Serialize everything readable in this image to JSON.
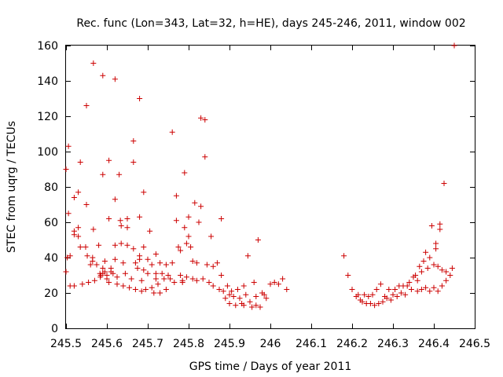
{
  "chart_data": {
    "type": "scatter",
    "title": "Rec. func (Lon=343, Lat=32, h=HE), days 245-246, 2011, window 002",
    "xlabel": "GPS time / Days of year 2011",
    "ylabel": "STEC from uqrg / TECUs",
    "xlim": [
      245.5,
      246.5
    ],
    "ylim": [
      0,
      160
    ],
    "x_ticks": [
      245.5,
      245.6,
      245.7,
      245.8,
      245.9,
      246.0,
      246.1,
      246.2,
      246.3,
      246.4,
      246.5
    ],
    "x_tick_labels": [
      "245.5",
      "245.6",
      "245.7",
      "245.8",
      "245.9",
      "246",
      "246.1",
      "246.2",
      "246.3",
      "246.4",
      "246.5"
    ],
    "y_ticks": [
      0,
      20,
      40,
      60,
      80,
      100,
      120,
      140,
      160
    ],
    "y_tick_labels": [
      "0",
      "20",
      "40",
      "60",
      "80",
      "100",
      "120",
      "140",
      "160"
    ],
    "marker": "+",
    "color": "#cc0000",
    "grid": false,
    "series": [
      {
        "name": "STEC",
        "points": [
          [
            245.5,
            90
          ],
          [
            245.5,
            32
          ],
          [
            245.503,
            40
          ],
          [
            245.506,
            103
          ],
          [
            245.506,
            65
          ],
          [
            245.51,
            41
          ],
          [
            245.51,
            24
          ],
          [
            245.52,
            74
          ],
          [
            245.52,
            55
          ],
          [
            245.52,
            53
          ],
          [
            245.52,
            24
          ],
          [
            245.53,
            77
          ],
          [
            245.535,
            94
          ],
          [
            245.53,
            57
          ],
          [
            245.53,
            52
          ],
          [
            245.535,
            46
          ],
          [
            245.54,
            25
          ],
          [
            245.548,
            46
          ],
          [
            245.55,
            126
          ],
          [
            245.55,
            70
          ],
          [
            245.552,
            41
          ],
          [
            245.555,
            26
          ],
          [
            245.567,
            150
          ],
          [
            245.567,
            56
          ],
          [
            245.565,
            40
          ],
          [
            245.565,
            38
          ],
          [
            245.56,
            36
          ],
          [
            245.57,
            27
          ],
          [
            245.575,
            36
          ],
          [
            245.58,
            47
          ],
          [
            245.583,
            31
          ],
          [
            245.584,
            29
          ],
          [
            245.585,
            30
          ],
          [
            245.59,
            143
          ],
          [
            245.59,
            87
          ],
          [
            245.595,
            38
          ],
          [
            245.59,
            34
          ],
          [
            245.59,
            31
          ],
          [
            245.595,
            32
          ],
          [
            245.6,
            30
          ],
          [
            245.6,
            28
          ],
          [
            245.605,
            95
          ],
          [
            245.605,
            62
          ],
          [
            245.605,
            26
          ],
          [
            245.61,
            34
          ],
          [
            245.61,
            32
          ],
          [
            245.615,
            31
          ],
          [
            245.62,
            141
          ],
          [
            245.62,
            73
          ],
          [
            245.62,
            47
          ],
          [
            245.62,
            39
          ],
          [
            245.625,
            29
          ],
          [
            245.625,
            25
          ],
          [
            245.63,
            87
          ],
          [
            245.633,
            61
          ],
          [
            245.635,
            58
          ],
          [
            245.635,
            48
          ],
          [
            245.64,
            37
          ],
          [
            245.64,
            24
          ],
          [
            245.645,
            31
          ],
          [
            245.65,
            62
          ],
          [
            245.65,
            57
          ],
          [
            245.65,
            47
          ],
          [
            245.655,
            23
          ],
          [
            245.66,
            28
          ],
          [
            245.665,
            106
          ],
          [
            245.665,
            94
          ],
          [
            245.665,
            45
          ],
          [
            245.67,
            37
          ],
          [
            245.67,
            22
          ],
          [
            245.675,
            34
          ],
          [
            245.68,
            130
          ],
          [
            245.68,
            63
          ],
          [
            245.68,
            41
          ],
          [
            245.68,
            39
          ],
          [
            245.685,
            27
          ],
          [
            245.685,
            21
          ],
          [
            245.69,
            77
          ],
          [
            245.69,
            46
          ],
          [
            245.69,
            33
          ],
          [
            245.695,
            22
          ],
          [
            245.7,
            39
          ],
          [
            245.7,
            31
          ],
          [
            245.705,
            55
          ],
          [
            245.71,
            36
          ],
          [
            245.71,
            23
          ],
          [
            245.715,
            20
          ],
          [
            245.72,
            42
          ],
          [
            245.72,
            31
          ],
          [
            245.72,
            28
          ],
          [
            245.725,
            25
          ],
          [
            245.73,
            37
          ],
          [
            245.73,
            20
          ],
          [
            245.735,
            31
          ],
          [
            245.74,
            28
          ],
          [
            245.745,
            22
          ],
          [
            245.745,
            36
          ],
          [
            245.75,
            30
          ],
          [
            245.755,
            28
          ],
          [
            245.76,
            111
          ],
          [
            245.76,
            37
          ],
          [
            245.765,
            26
          ],
          [
            245.77,
            75
          ],
          [
            245.77,
            61
          ],
          [
            245.775,
            46
          ],
          [
            245.78,
            44
          ],
          [
            245.78,
            30
          ],
          [
            245.785,
            27
          ],
          [
            245.785,
            26
          ],
          [
            245.79,
            88
          ],
          [
            245.79,
            57
          ],
          [
            245.795,
            48
          ],
          [
            245.795,
            29
          ],
          [
            245.8,
            63
          ],
          [
            245.8,
            52
          ],
          [
            245.805,
            46
          ],
          [
            245.81,
            38
          ],
          [
            245.81,
            28
          ],
          [
            245.815,
            71
          ],
          [
            245.82,
            37
          ],
          [
            245.82,
            27
          ],
          [
            245.825,
            60
          ],
          [
            245.83,
            119
          ],
          [
            245.83,
            69
          ],
          [
            245.835,
            28
          ],
          [
            245.84,
            118
          ],
          [
            245.84,
            97
          ],
          [
            245.845,
            36
          ],
          [
            245.85,
            26
          ],
          [
            245.855,
            52
          ],
          [
            245.86,
            35
          ],
          [
            245.86,
            24
          ],
          [
            245.87,
            37
          ],
          [
            245.875,
            22
          ],
          [
            245.88,
            62
          ],
          [
            245.88,
            30
          ],
          [
            245.885,
            21
          ],
          [
            245.89,
            17
          ],
          [
            245.895,
            24
          ],
          [
            245.9,
            14
          ],
          [
            245.9,
            19
          ],
          [
            245.905,
            21
          ],
          [
            245.91,
            18
          ],
          [
            245.915,
            13
          ],
          [
            245.92,
            22
          ],
          [
            245.925,
            17
          ],
          [
            245.93,
            14
          ],
          [
            245.935,
            24
          ],
          [
            245.935,
            13
          ],
          [
            245.94,
            19
          ],
          [
            245.945,
            41
          ],
          [
            245.95,
            15
          ],
          [
            245.955,
            12
          ],
          [
            245.96,
            26
          ],
          [
            245.965,
            18
          ],
          [
            245.965,
            13
          ],
          [
            245.97,
            50
          ],
          [
            245.975,
            12
          ],
          [
            245.98,
            20
          ],
          [
            245.985,
            19
          ],
          [
            245.99,
            17
          ],
          [
            246.0,
            25
          ],
          [
            246.01,
            26
          ],
          [
            246.02,
            25
          ],
          [
            246.03,
            28
          ],
          [
            246.04,
            22
          ],
          [
            246.18,
            41
          ],
          [
            246.19,
            30
          ],
          [
            246.2,
            22
          ],
          [
            246.21,
            18
          ],
          [
            246.215,
            19
          ],
          [
            246.22,
            16
          ],
          [
            246.225,
            15
          ],
          [
            246.23,
            19
          ],
          [
            246.235,
            14
          ],
          [
            246.24,
            18
          ],
          [
            246.245,
            14
          ],
          [
            246.25,
            19
          ],
          [
            246.255,
            13
          ],
          [
            246.26,
            22
          ],
          [
            246.265,
            14
          ],
          [
            246.27,
            25
          ],
          [
            246.275,
            15
          ],
          [
            246.28,
            18
          ],
          [
            246.285,
            17
          ],
          [
            246.29,
            22
          ],
          [
            246.295,
            16
          ],
          [
            246.3,
            19
          ],
          [
            246.305,
            22
          ],
          [
            246.31,
            18
          ],
          [
            246.315,
            24
          ],
          [
            246.32,
            20
          ],
          [
            246.325,
            24
          ],
          [
            246.33,
            19
          ],
          [
            246.335,
            24
          ],
          [
            246.34,
            26
          ],
          [
            246.345,
            22
          ],
          [
            246.35,
            29
          ],
          [
            246.355,
            30
          ],
          [
            246.36,
            27
          ],
          [
            246.365,
            35
          ],
          [
            246.37,
            32
          ],
          [
            246.375,
            38
          ],
          [
            246.38,
            43
          ],
          [
            246.385,
            34
          ],
          [
            246.39,
            40
          ],
          [
            246.395,
            58
          ],
          [
            246.4,
            36
          ],
          [
            246.405,
            48
          ],
          [
            246.405,
            45
          ],
          [
            246.41,
            35
          ],
          [
            246.415,
            59
          ],
          [
            246.415,
            56
          ],
          [
            246.42,
            33
          ],
          [
            246.425,
            82
          ],
          [
            246.43,
            32
          ],
          [
            246.44,
            30
          ],
          [
            246.445,
            34
          ],
          [
            246.45,
            160
          ],
          [
            246.36,
            21
          ],
          [
            246.37,
            22
          ],
          [
            246.38,
            23
          ],
          [
            246.39,
            21
          ],
          [
            246.4,
            23
          ],
          [
            246.41,
            21
          ],
          [
            246.42,
            24
          ],
          [
            246.43,
            27
          ]
        ]
      }
    ]
  }
}
